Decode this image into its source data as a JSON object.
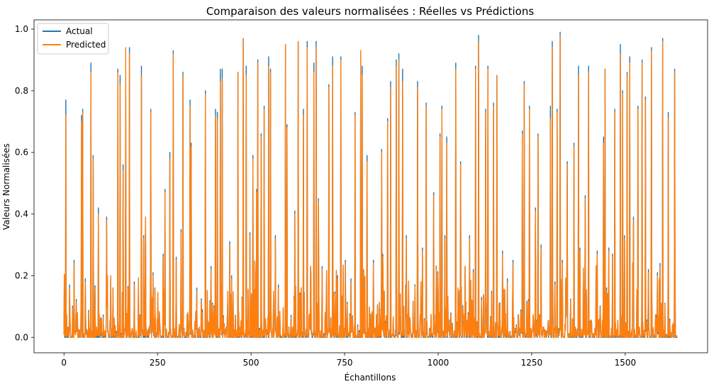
{
  "chart_data": {
    "type": "line",
    "title": "Comparaison des valeurs normalisées : Réelles vs Prédictions",
    "xlabel": "Échantillons",
    "ylabel": "Valeurs Normalisées",
    "xlim": [
      -80,
      1720
    ],
    "ylim": [
      -0.05,
      1.03
    ],
    "xticks": [
      0,
      250,
      500,
      750,
      1000,
      1250,
      1500
    ],
    "yticks": [
      0.0,
      0.2,
      0.4,
      0.6,
      0.8,
      1.0
    ],
    "xtick_labels": [
      "0",
      "250",
      "500",
      "750",
      "1000",
      "1250",
      "1500"
    ],
    "ytick_labels": [
      "0.0",
      "0.2",
      "0.4",
      "0.6",
      "0.8",
      "1.0"
    ],
    "grid": false,
    "legend_position": "top-left",
    "n_samples": 1640,
    "series": [
      {
        "name": "Actual",
        "color": "#1f77b4"
      },
      {
        "name": "Predicted",
        "color": "#ff7f0e"
      }
    ],
    "spikes": [
      [
        5,
        0.77,
        0.72
      ],
      [
        15,
        0.17,
        0.16
      ],
      [
        27,
        0.25,
        0.24
      ],
      [
        47,
        0.72,
        0.7
      ],
      [
        50,
        0.74,
        0.73
      ],
      [
        57,
        0.19,
        0.18
      ],
      [
        72,
        0.89,
        0.86
      ],
      [
        78,
        0.59,
        0.58
      ],
      [
        92,
        0.42,
        0.4
      ],
      [
        114,
        0.39,
        0.38
      ],
      [
        144,
        0.87,
        0.86
      ],
      [
        150,
        0.85,
        0.82
      ],
      [
        158,
        0.56,
        0.54
      ],
      [
        165,
        0.83,
        0.94
      ],
      [
        175,
        0.94,
        0.92
      ],
      [
        188,
        0.18,
        0.17
      ],
      [
        207,
        0.88,
        0.85
      ],
      [
        213,
        0.33,
        0.32
      ],
      [
        218,
        0.39,
        0.39
      ],
      [
        232,
        0.74,
        0.73
      ],
      [
        238,
        0.21,
        0.2
      ],
      [
        265,
        0.27,
        0.26
      ],
      [
        270,
        0.48,
        0.47
      ],
      [
        283,
        0.6,
        0.58
      ],
      [
        292,
        0.93,
        0.92
      ],
      [
        300,
        0.26,
        0.25
      ],
      [
        313,
        0.35,
        0.34
      ],
      [
        318,
        0.86,
        0.85
      ],
      [
        337,
        0.77,
        0.75
      ],
      [
        340,
        0.63,
        0.62
      ],
      [
        355,
        0.16,
        0.15
      ],
      [
        370,
        0.09,
        0.08
      ],
      [
        378,
        0.8,
        0.79
      ],
      [
        393,
        0.23,
        0.22
      ],
      [
        405,
        0.74,
        0.72
      ],
      [
        410,
        0.73,
        0.71
      ],
      [
        418,
        0.87,
        0.83
      ],
      [
        423,
        0.87,
        0.84
      ],
      [
        443,
        0.31,
        0.3
      ],
      [
        448,
        0.2,
        0.19
      ],
      [
        465,
        0.86,
        0.86
      ],
      [
        479,
        0.97,
        0.97
      ],
      [
        487,
        0.88,
        0.85
      ],
      [
        497,
        0.34,
        0.33
      ],
      [
        505,
        0.59,
        0.58
      ],
      [
        515,
        0.48,
        0.47
      ],
      [
        518,
        0.9,
        0.89
      ],
      [
        527,
        0.66,
        0.65
      ],
      [
        535,
        0.75,
        0.74
      ],
      [
        547,
        0.91,
        0.88
      ],
      [
        552,
        0.87,
        0.86
      ],
      [
        565,
        0.33,
        0.32
      ],
      [
        573,
        0.17,
        0.16
      ],
      [
        592,
        0.95,
        0.95
      ],
      [
        596,
        0.69,
        0.68
      ],
      [
        617,
        0.41,
        0.4
      ],
      [
        626,
        0.96,
        0.96
      ],
      [
        640,
        0.74,
        0.72
      ],
      [
        650,
        0.96,
        0.94
      ],
      [
        660,
        0.21,
        0.2
      ],
      [
        668,
        0.89,
        0.86
      ],
      [
        674,
        0.96,
        0.94
      ],
      [
        680,
        0.45,
        0.44
      ],
      [
        690,
        0.23,
        0.22
      ],
      [
        708,
        0.82,
        0.81
      ],
      [
        718,
        0.91,
        0.88
      ],
      [
        731,
        0.2,
        0.19
      ],
      [
        740,
        0.91,
        0.9
      ],
      [
        752,
        0.25,
        0.24
      ],
      [
        767,
        0.19,
        0.18
      ],
      [
        778,
        0.73,
        0.72
      ],
      [
        793,
        0.93,
        0.93
      ],
      [
        797,
        0.88,
        0.85
      ],
      [
        810,
        0.59,
        0.57
      ],
      [
        827,
        0.25,
        0.24
      ],
      [
        849,
        0.61,
        0.6
      ],
      [
        852,
        0.27,
        0.26
      ],
      [
        865,
        0.71,
        0.7
      ],
      [
        873,
        0.83,
        0.81
      ],
      [
        888,
        0.9,
        0.88
      ],
      [
        895,
        0.92,
        0.9
      ],
      [
        905,
        0.87,
        0.83
      ],
      [
        915,
        0.33,
        0.32
      ],
      [
        945,
        0.83,
        0.81
      ],
      [
        958,
        0.29,
        0.28
      ],
      [
        968,
        0.76,
        0.75
      ],
      [
        988,
        0.47,
        0.46
      ],
      [
        1005,
        0.66,
        0.65
      ],
      [
        1010,
        0.75,
        0.74
      ],
      [
        1018,
        0.33,
        0.32
      ],
      [
        1023,
        0.65,
        0.63
      ],
      [
        1047,
        0.89,
        0.87
      ],
      [
        1060,
        0.57,
        0.56
      ],
      [
        1084,
        0.33,
        0.32
      ],
      [
        1094,
        0.22,
        0.21
      ],
      [
        1100,
        0.88,
        0.87
      ],
      [
        1108,
        0.98,
        0.96
      ],
      [
        1116,
        0.13,
        0.12
      ],
      [
        1127,
        0.74,
        0.73
      ],
      [
        1133,
        0.88,
        0.87
      ],
      [
        1143,
        0.15,
        0.14
      ],
      [
        1148,
        0.76,
        0.75
      ],
      [
        1157,
        0.85,
        0.85
      ],
      [
        1172,
        0.28,
        0.27
      ],
      [
        1185,
        0.19,
        0.18
      ],
      [
        1200,
        0.25,
        0.24
      ],
      [
        1225,
        0.67,
        0.66
      ],
      [
        1230,
        0.83,
        0.82
      ],
      [
        1244,
        0.75,
        0.74
      ],
      [
        1260,
        0.42,
        0.41
      ],
      [
        1267,
        0.66,
        0.65
      ],
      [
        1275,
        0.3,
        0.29
      ],
      [
        1300,
        0.75,
        0.71
      ],
      [
        1305,
        0.96,
        0.94
      ],
      [
        1312,
        0.18,
        0.17
      ],
      [
        1318,
        0.74,
        0.73
      ],
      [
        1326,
        0.99,
        0.98
      ],
      [
        1332,
        0.25,
        0.24
      ],
      [
        1345,
        0.57,
        0.56
      ],
      [
        1363,
        0.63,
        0.62
      ],
      [
        1375,
        0.88,
        0.85
      ],
      [
        1379,
        0.29,
        0.28
      ],
      [
        1393,
        0.46,
        0.45
      ],
      [
        1402,
        0.88,
        0.86
      ],
      [
        1425,
        0.28,
        0.27
      ],
      [
        1442,
        0.65,
        0.63
      ],
      [
        1446,
        0.87,
        0.87
      ],
      [
        1456,
        0.29,
        0.28
      ],
      [
        1466,
        0.27,
        0.26
      ],
      [
        1472,
        0.74,
        0.73
      ],
      [
        1487,
        0.95,
        0.92
      ],
      [
        1493,
        0.8,
        0.79
      ],
      [
        1498,
        0.33,
        0.32
      ],
      [
        1505,
        0.86,
        0.85
      ],
      [
        1512,
        0.91,
        0.89
      ],
      [
        1522,
        0.39,
        0.38
      ],
      [
        1534,
        0.75,
        0.74
      ],
      [
        1545,
        0.9,
        0.89
      ],
      [
        1554,
        0.78,
        0.77
      ],
      [
        1562,
        0.22,
        0.21
      ],
      [
        1570,
        0.94,
        0.93
      ],
      [
        1586,
        0.21,
        0.2
      ],
      [
        1593,
        0.24,
        0.23
      ],
      [
        1600,
        0.97,
        0.96
      ],
      [
        1615,
        0.73,
        0.71
      ],
      [
        1632,
        0.87,
        0.86
      ]
    ]
  }
}
